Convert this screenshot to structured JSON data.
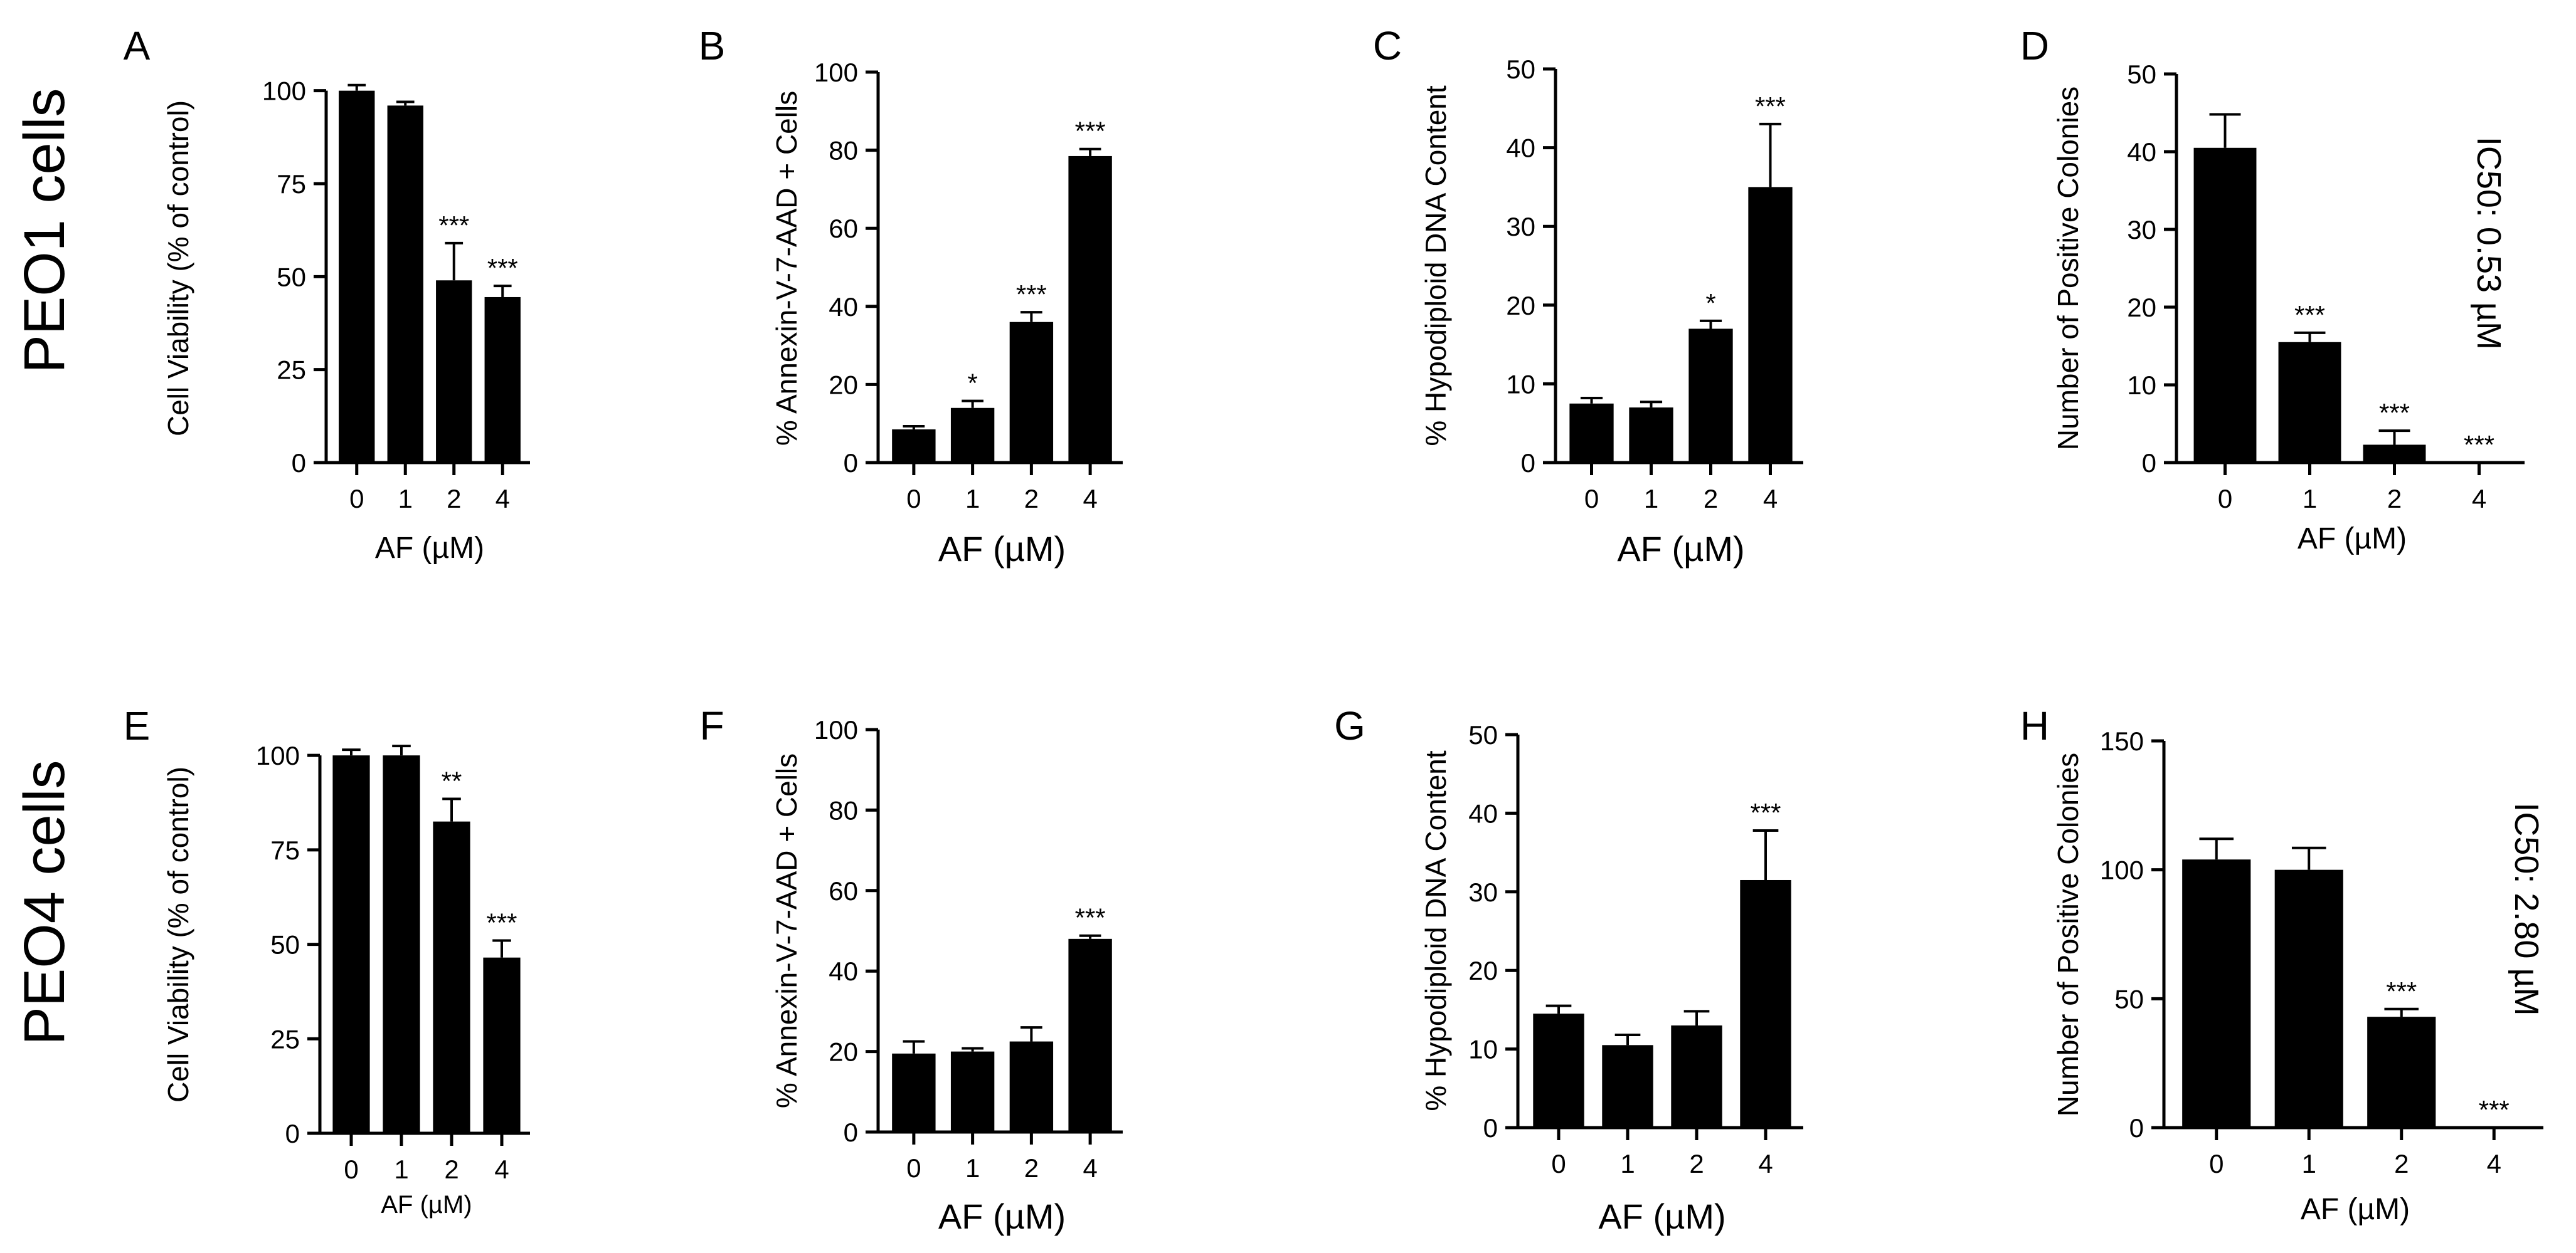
{
  "colors": {
    "bar": "#000000",
    "axis": "#000000",
    "background": "#ffffff"
  },
  "rows": [
    {
      "label": "PEO1 cells"
    },
    {
      "label": "PEO4 cells"
    }
  ],
  "chart_data": [
    {
      "panel": "A",
      "type": "bar",
      "xlabel": "AF (µM)",
      "ylabel": "Cell Viability (% of control)",
      "categories": [
        "0",
        "1",
        "2",
        "4"
      ],
      "values": [
        100,
        96,
        49,
        44.5
      ],
      "errors": [
        1.5,
        1,
        10,
        3
      ],
      "significance": [
        "",
        "",
        "***",
        "***"
      ],
      "ylim": [
        0,
        105
      ],
      "yticks": [
        0,
        25,
        50,
        75,
        100
      ],
      "annotation": ""
    },
    {
      "panel": "B",
      "type": "bar",
      "xlabel": "AF (µM)",
      "ylabel": "% Annexin-V-7-AAD + Cells",
      "categories": [
        "0",
        "1",
        "2",
        "4"
      ],
      "values": [
        8.5,
        14,
        36,
        78.5
      ],
      "errors": [
        0.8,
        1.8,
        2.5,
        1.8
      ],
      "significance": [
        "",
        "*",
        "***",
        "***"
      ],
      "ylim": [
        0,
        100
      ],
      "yticks": [
        0,
        20,
        40,
        60,
        80,
        100
      ],
      "annotation": ""
    },
    {
      "panel": "C",
      "type": "bar",
      "xlabel": "AF (µM)",
      "ylabel": "% Hypodiploid DNA Content",
      "categories": [
        "0",
        "1",
        "2",
        "4"
      ],
      "values": [
        7.5,
        7,
        17,
        35
      ],
      "errors": [
        0.7,
        0.7,
        1,
        8
      ],
      "significance": [
        "",
        "",
        "*",
        "***"
      ],
      "ylim": [
        0,
        50
      ],
      "yticks": [
        0,
        10,
        20,
        30,
        40,
        50
      ],
      "annotation": ""
    },
    {
      "panel": "D",
      "type": "bar",
      "xlabel": "AF (µM)",
      "ylabel": "Number of Positive Colonies",
      "categories": [
        "0",
        "1",
        "2",
        "4"
      ],
      "values": [
        40.5,
        15.5,
        2.3,
        0
      ],
      "errors": [
        4.3,
        1.2,
        1.8,
        0
      ],
      "significance": [
        "",
        "***",
        "***",
        "***"
      ],
      "ylim": [
        0,
        50
      ],
      "yticks": [
        0,
        10,
        20,
        30,
        40,
        50
      ],
      "annotation": "IC50: 0.53 µM"
    },
    {
      "panel": "E",
      "type": "bar",
      "xlabel": "AF (µM)",
      "ylabel": "Cell Viability (% of control)",
      "categories": [
        "0",
        "1",
        "2",
        "4"
      ],
      "values": [
        100,
        100,
        82.5,
        46.5
      ],
      "errors": [
        1.5,
        2.5,
        6,
        4.5
      ],
      "significance": [
        "",
        "",
        "**",
        "***"
      ],
      "ylim": [
        0,
        105
      ],
      "yticks": [
        0,
        25,
        50,
        75,
        100
      ],
      "annotation": ""
    },
    {
      "panel": "F",
      "type": "bar",
      "xlabel": "AF (µM)",
      "ylabel": "% Annexin-V-7-AAD + Cells",
      "categories": [
        "0",
        "1",
        "2",
        "4"
      ],
      "values": [
        19.5,
        20,
        22.5,
        48
      ],
      "errors": [
        3,
        0.8,
        3.5,
        0.8
      ],
      "significance": [
        "",
        "",
        "",
        "***"
      ],
      "ylim": [
        0,
        100
      ],
      "yticks": [
        0,
        20,
        40,
        60,
        80,
        100
      ],
      "annotation": ""
    },
    {
      "panel": "G",
      "type": "bar",
      "xlabel": "AF (µM)",
      "ylabel": "% Hypodiploid DNA Content",
      "categories": [
        "0",
        "1",
        "2",
        "4"
      ],
      "values": [
        14.5,
        10.5,
        13,
        31.5
      ],
      "errors": [
        1,
        1.3,
        1.8,
        6.3
      ],
      "significance": [
        "",
        "",
        "",
        "***"
      ],
      "ylim": [
        0,
        50
      ],
      "yticks": [
        0,
        10,
        20,
        30,
        40,
        50
      ],
      "annotation": ""
    },
    {
      "panel": "H",
      "type": "bar",
      "xlabel": "AF (µM)",
      "ylabel": "Number of Positive Colonies",
      "categories": [
        "0",
        "1",
        "2",
        "4"
      ],
      "values": [
        104,
        100,
        43,
        0
      ],
      "errors": [
        8,
        8.5,
        3,
        0
      ],
      "significance": [
        "",
        "",
        "***",
        "***"
      ],
      "ylim": [
        0,
        150
      ],
      "yticks": [
        0,
        50,
        100,
        150
      ],
      "annotation": "IC50: 2.80 µM"
    }
  ]
}
